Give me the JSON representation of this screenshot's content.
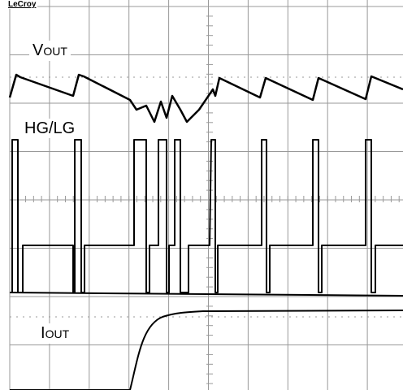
{
  "logo": "LeCroy",
  "labels": [
    {
      "main": "V",
      "sub": "OUT"
    },
    {
      "main": "HG/LG"
    },
    {
      "main": "I",
      "sub": "OUT"
    }
  ]
}
